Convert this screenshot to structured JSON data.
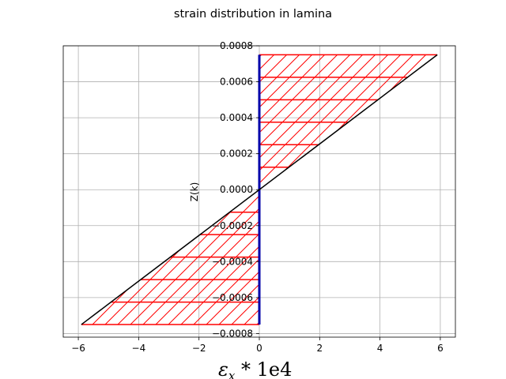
{
  "chart_data": {
    "type": "area",
    "title": "strain distribution in lamina",
    "xlabel": {
      "symbol": "ε",
      "subscript": "x",
      "suffix": " * 1e4"
    },
    "ylabel": "Z(k)",
    "xlim": [
      -6.5,
      6.5
    ],
    "ylim": [
      -0.00082,
      0.0008
    ],
    "grid": true,
    "xticks": [
      -6,
      -4,
      -2,
      0,
      2,
      4,
      6
    ],
    "xtick_labels": [
      "−6",
      "−4",
      "−2",
      "0",
      "2",
      "4",
      "6"
    ],
    "yticks": [
      -0.0008,
      -0.0006,
      -0.0004,
      -0.0002,
      0.0,
      0.0002,
      0.0004,
      0.0006,
      0.0008
    ],
    "ytick_labels": [
      "−0.0008",
      "−0.0006",
      "−0.0004",
      "−0.0002",
      "0.0000",
      "0.0002",
      "0.0004",
      "0.0006",
      "0.0008"
    ],
    "strain_line": {
      "x": [
        -5.9,
        5.9
      ],
      "y": [
        -0.00075,
        0.00075
      ],
      "color": "#000000"
    },
    "zero_axis": {
      "x": 0,
      "y": [
        -0.00075,
        0.00075
      ],
      "color": "#0000aa"
    },
    "layer_boundaries_z": [
      -0.00075,
      -0.000625,
      -0.0005,
      -0.000375,
      -0.00025,
      -0.000125,
      0.0,
      0.000125,
      0.00025,
      0.000375,
      0.0005,
      0.000625,
      0.00075
    ],
    "hatch_color": "#ff0000"
  }
}
